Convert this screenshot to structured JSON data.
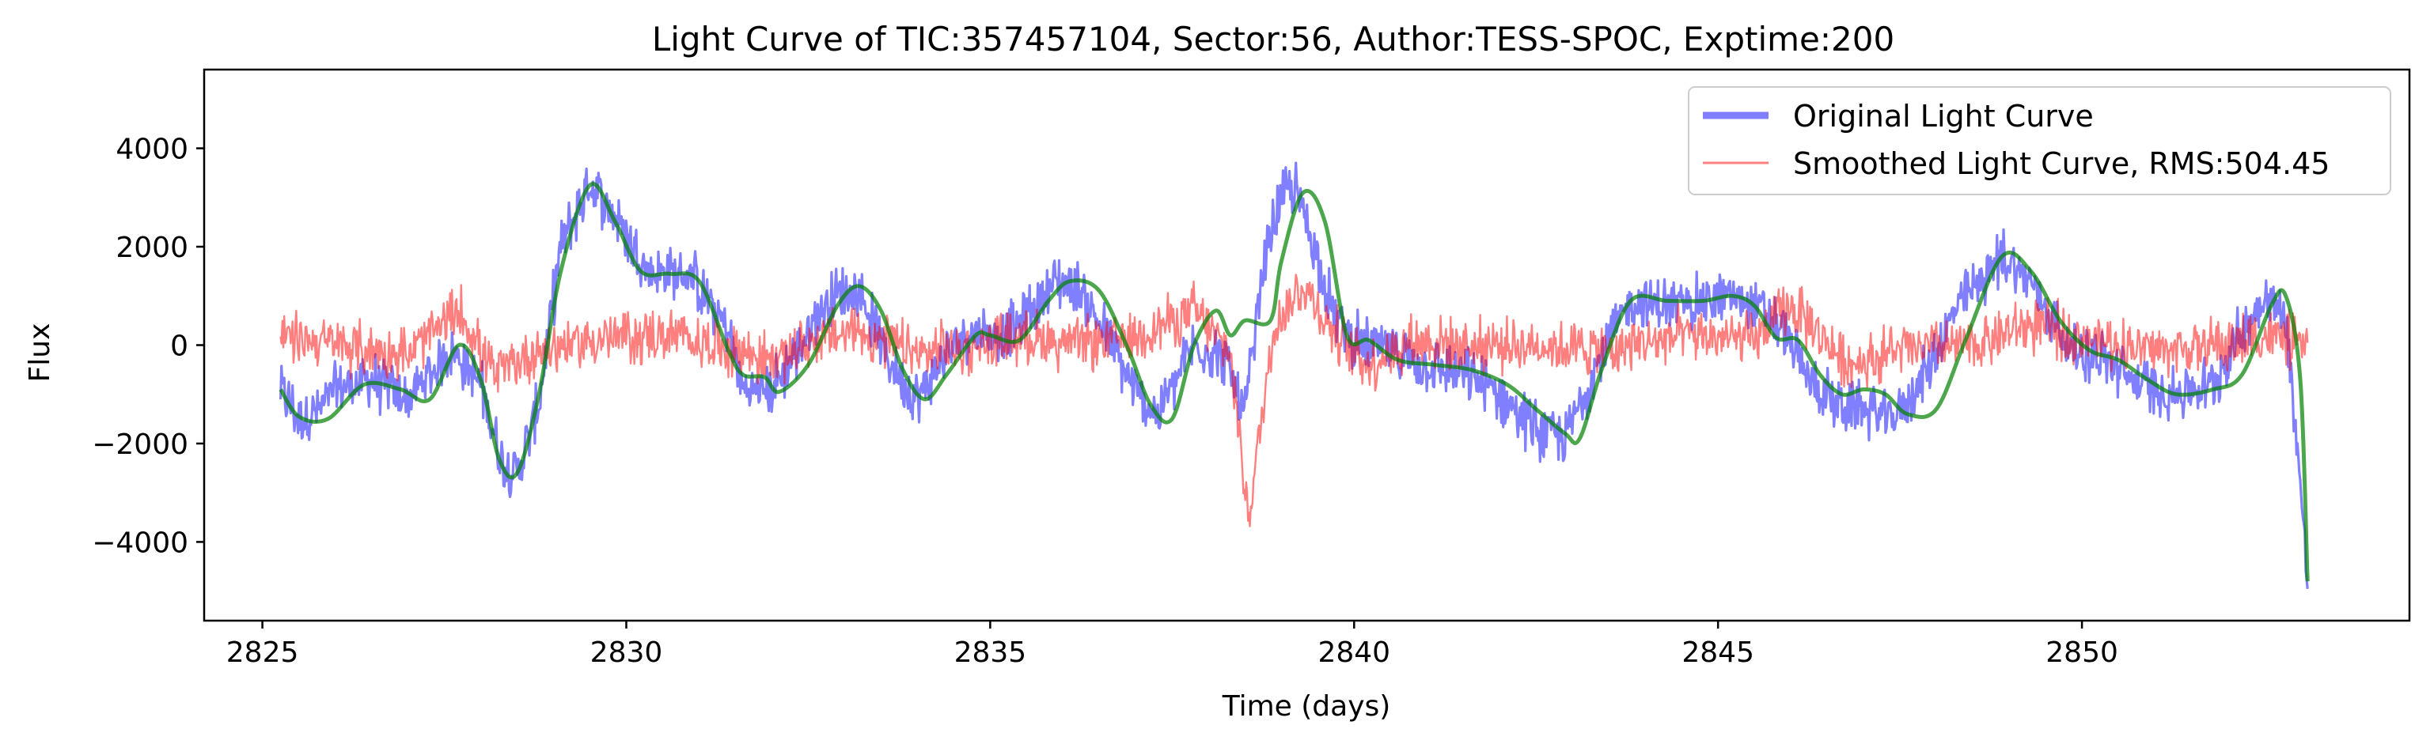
{
  "chart_data": {
    "type": "line",
    "title": "Light Curve of TIC:357457104, Sector:56, Author:TESS-SPOC, Exptime:200",
    "xlabel": "Time (days)",
    "ylabel": "Flux",
    "xlim": [
      2824.2,
      2854.5
    ],
    "ylim": [
      -5600,
      5600
    ],
    "x_ticks": [
      2825,
      2830,
      2835,
      2840,
      2845,
      2850
    ],
    "y_ticks": [
      -4000,
      -2000,
      0,
      2000,
      4000
    ],
    "x_tick_labels": [
      "2825",
      "2830",
      "2835",
      "2840",
      "2845",
      "2850"
    ],
    "y_tick_labels": [
      "−4000",
      "−2000",
      "0",
      "2000",
      "4000"
    ],
    "grid": false,
    "legend_position": "top-right",
    "series": [
      {
        "name": "Original Light Curve",
        "color": "#0000ff",
        "alpha": 0.5,
        "style": "noisy-band",
        "noise_amplitude": 500,
        "x": [
          2825.25,
          2825.5,
          2825.8,
          2826.0,
          2826.5,
          2827.0,
          2827.6,
          2828.0,
          2828.3,
          2828.5,
          2828.8,
          2829.1,
          2829.5,
          2829.9,
          2830.3,
          2830.9,
          2831.4,
          2831.6,
          2832.0,
          2832.4,
          2832.8,
          2833.2,
          2833.6,
          2834.0,
          2834.3,
          2834.7,
          2835.0,
          2835.4,
          2835.9,
          2836.2,
          2836.6,
          2837.0,
          2837.3,
          2837.8,
          2838.2,
          2838.5,
          2838.8,
          2839.0,
          2839.2,
          2839.45,
          2839.75,
          2840.1,
          2840.5,
          2841.0,
          2841.5,
          2842.0,
          2842.5,
          2842.9,
          2843.3,
          2843.8,
          2844.3,
          2844.8,
          2845.2,
          2845.6,
          2845.9,
          2846.2,
          2846.6,
          2847.0,
          2847.4,
          2847.8,
          2848.3,
          2848.9,
          2849.3,
          2849.8,
          2850.3,
          2850.8,
          2851.3,
          2851.8,
          2852.2,
          2852.5,
          2852.8,
          2853.0,
          2853.1
        ],
        "values": [
          -900,
          -1500,
          -1300,
          -900,
          -700,
          -1100,
          -100,
          -800,
          -2400,
          -2600,
          -1200,
          2000,
          3300,
          2500,
          1500,
          1400,
          300,
          -900,
          -900,
          0,
          1000,
          1100,
          -300,
          -1100,
          -400,
          300,
          200,
          400,
          1300,
          1200,
          200,
          -1000,
          -1400,
          0,
          -200,
          -1400,
          2000,
          3000,
          3200,
          2000,
          500,
          0,
          -100,
          -400,
          -600,
          -1000,
          -1700,
          -1900,
          -500,
          900,
          800,
          900,
          1000,
          700,
          300,
          -600,
          -1200,
          -1300,
          -1500,
          -700,
          800,
          1800,
          1300,
          0,
          -300,
          -800,
          -1000,
          -800,
          300,
          1000,
          600,
          -2800,
          -4900
        ]
      },
      {
        "name": "Smoothed Light Curve, RMS:504.45",
        "color": "#ff0000",
        "alpha": 0.5,
        "style": "noisy-band",
        "noise_amplitude": 500,
        "x": [
          2825.25,
          2826.0,
          2827.0,
          2827.7,
          2828.2,
          2828.8,
          2829.5,
          2830.5,
          2831.3,
          2832.0,
          2832.6,
          2833.2,
          2834.0,
          2834.8,
          2835.5,
          2836.2,
          2837.0,
          2837.8,
          2838.3,
          2838.55,
          2838.9,
          2839.3,
          2839.7,
          2840.2,
          2840.8,
          2841.5,
          2842.5,
          2843.5,
          2844.5,
          2845.5,
          2846.0,
          2846.8,
          2847.5,
          2848.5,
          2849.3,
          2850.2,
          2851.0,
          2852.0,
          2852.6,
          2853.0,
          2853.1
        ],
        "values": [
          200,
          0,
          -200,
          700,
          -600,
          -100,
          100,
          200,
          0,
          -300,
          100,
          300,
          -200,
          0,
          200,
          0,
          200,
          700,
          -200,
          -3500,
          400,
          1200,
          300,
          -400,
          100,
          0,
          0,
          -100,
          200,
          100,
          800,
          -400,
          -100,
          0,
          400,
          100,
          -100,
          0,
          200,
          0,
          0
        ]
      },
      {
        "name": "",
        "color": "#008000",
        "alpha": 0.7,
        "style": "smooth-line",
        "x": [
          2825.25,
          2825.5,
          2825.9,
          2826.4,
          2826.9,
          2827.3,
          2827.7,
          2828.0,
          2828.25,
          2828.5,
          2828.8,
          2829.1,
          2829.5,
          2829.85,
          2830.2,
          2830.6,
          2831.0,
          2831.4,
          2831.6,
          2831.9,
          2832.1,
          2832.5,
          2832.9,
          2833.2,
          2833.5,
          2833.8,
          2834.1,
          2834.4,
          2834.8,
          2835.0,
          2835.4,
          2835.8,
          2836.1,
          2836.5,
          2836.9,
          2837.2,
          2837.5,
          2837.8,
          2838.1,
          2838.3,
          2838.5,
          2838.85,
          2839.0,
          2839.3,
          2839.6,
          2839.9,
          2840.2,
          2840.6,
          2841.1,
          2841.6,
          2842.1,
          2842.5,
          2842.9,
          2843.1,
          2843.4,
          2843.8,
          2844.3,
          2844.8,
          2845.2,
          2845.5,
          2845.8,
          2846.1,
          2846.4,
          2846.7,
          2847.0,
          2847.3,
          2847.6,
          2848.0,
          2848.4,
          2848.9,
          2849.3,
          2849.7,
          2850.1,
          2850.5,
          2850.9,
          2851.3,
          2851.8,
          2852.2,
          2852.6,
          2852.8,
          2853.0,
          2853.1
        ],
        "values": [
          -900,
          -1450,
          -1500,
          -800,
          -900,
          -1100,
          0,
          -700,
          -2300,
          -2600,
          -1000,
          1500,
          3250,
          2500,
          1500,
          1450,
          1300,
          -100,
          -600,
          -650,
          -950,
          -400,
          800,
          1200,
          700,
          -500,
          -1100,
          -600,
          200,
          200,
          100,
          900,
          1300,
          1100,
          -100,
          -1200,
          -1500,
          0,
          700,
          200,
          500,
          500,
          1700,
          3100,
          2500,
          200,
          100,
          -300,
          -400,
          -500,
          -800,
          -1300,
          -1800,
          -1900,
          -500,
          900,
          900,
          900,
          1000,
          800,
          150,
          100,
          -600,
          -1000,
          -900,
          -1000,
          -1400,
          -1300,
          100,
          1800,
          1500,
          500,
          -100,
          -300,
          -700,
          -1000,
          -900,
          -600,
          800,
          1000,
          -700,
          -4800
        ]
      }
    ]
  }
}
